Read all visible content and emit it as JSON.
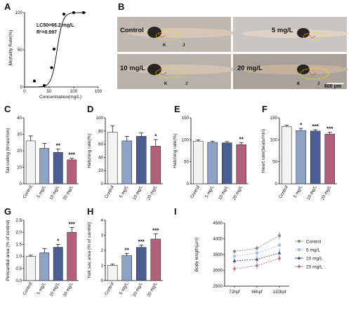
{
  "panels": [
    {
      "id": "A",
      "label": "A"
    },
    {
      "id": "B",
      "label": "B"
    },
    {
      "id": "C",
      "label": "C"
    },
    {
      "id": "D",
      "label": "D"
    },
    {
      "id": "E",
      "label": "E"
    },
    {
      "id": "F",
      "label": "F"
    },
    {
      "id": "G",
      "label": "G"
    },
    {
      "id": "H",
      "label": "H"
    },
    {
      "id": "I",
      "label": "I"
    }
  ],
  "colors": {
    "control": "#f3f3f3",
    "c5": "#8fa3c9",
    "c10": "#4b5d93",
    "c20": "#b3607a",
    "l_control": "#8a8a8a",
    "l_5": "#a8c0e0",
    "l_10": "#3b4a6d",
    "l_20": "#b07080"
  },
  "panelA": {
    "annotation_lc50": "LC50=66.2 mg/L",
    "annotation_r2": "R²=0.997",
    "chart_data": {
      "type": "scatter",
      "xlabel": "Concentration(mg/L)",
      "ylabel": "Mortality Rate(%)",
      "xlim": [
        0,
        150
      ],
      "ylim": [
        0,
        100
      ],
      "xticks": [
        0,
        50,
        100,
        150
      ],
      "yticks": [
        0,
        50,
        100
      ],
      "x": [
        20,
        40,
        55,
        60,
        80,
        100,
        120
      ],
      "values": [
        8,
        2,
        26,
        51,
        98,
        100,
        100
      ]
    }
  },
  "panelB": {
    "labels": {
      "control": "Control",
      "c5": "5 mg/L",
      "c10": "10 mg/L",
      "c20": "20 mg/L"
    },
    "marker_k": "K",
    "marker_j": "J",
    "scalebar": "600 μm"
  },
  "bar_charts": [
    {
      "id": "C",
      "type": "bar",
      "ylabel": "Tail coiling (times/min)",
      "ylim": [
        0,
        40
      ],
      "yticks": [
        0,
        10,
        20,
        30,
        40
      ],
      "categories": [
        "Control",
        "5 mg/L",
        "10 mg/L",
        "20 mg/L"
      ],
      "values": [
        26,
        21.5,
        19,
        14.5
      ],
      "errors": [
        3,
        3,
        2,
        1
      ],
      "sig": [
        "",
        "",
        "**",
        "***"
      ]
    },
    {
      "id": "D",
      "type": "bar",
      "ylabel": "Hatching rate(%)",
      "ylim": [
        0,
        100
      ],
      "yticks": [
        0,
        20,
        40,
        60,
        80,
        100
      ],
      "categories": [
        "Control",
        "5 mg/L",
        "10 mg/L",
        "20 mg/L"
      ],
      "values": [
        78,
        65,
        72,
        57
      ],
      "errors": [
        10,
        7,
        5,
        10
      ],
      "sig": [
        "",
        "",
        "",
        "*"
      ]
    },
    {
      "id": "E",
      "type": "bar",
      "ylabel": "Hatching rate(%)",
      "ylim": [
        0,
        150
      ],
      "yticks": [
        0,
        50,
        100,
        150
      ],
      "categories": [
        "Control",
        "5 mg/L",
        "10 mg/L",
        "20 mg/L"
      ],
      "values": [
        97,
        94,
        93,
        89
      ],
      "errors": [
        3,
        3,
        3,
        4
      ],
      "sig": [
        "",
        "",
        "",
        "**"
      ]
    },
    {
      "id": "F",
      "type": "bar",
      "ylabel": "Heart rate(beats/min)",
      "ylim": [
        0,
        150
      ],
      "yticks": [
        0,
        50,
        100,
        150
      ],
      "categories": [
        "Control",
        "5 mg/L",
        "10 mg/L",
        "20 mg/L"
      ],
      "values": [
        130,
        121,
        120,
        113
      ],
      "errors": [
        3,
        5,
        3,
        4
      ],
      "sig": [
        "",
        "*",
        "***",
        "***"
      ]
    },
    {
      "id": "G",
      "type": "bar",
      "ylabel": "Pericardial area (% of control)",
      "ylim": [
        0,
        2.5
      ],
      "yticks": [
        0.0,
        0.5,
        1.0,
        1.5,
        2.0,
        2.5
      ],
      "categories": [
        "Control",
        "5 mg/L",
        "10 mg/L",
        "20 mg/L"
      ],
      "values": [
        1.0,
        1.15,
        1.38,
        2.0
      ],
      "errors": [
        0.05,
        0.18,
        0.12,
        0.2
      ],
      "sig": [
        "",
        "",
        "*",
        "***"
      ]
    },
    {
      "id": "H",
      "type": "bar",
      "ylabel": "Yolk sac area (% of control)",
      "ylim": [
        0,
        4
      ],
      "yticks": [
        0,
        1,
        2,
        3,
        4
      ],
      "categories": [
        "Control",
        "5 mg/L",
        "10 mg/L",
        "20 mg/L"
      ],
      "values": [
        1.0,
        1.65,
        2.2,
        2.75
      ],
      "errors": [
        0.1,
        0.15,
        0.15,
        0.35
      ],
      "sig": [
        "",
        "**",
        "***",
        "***"
      ]
    }
  ],
  "panelI": {
    "chart_data": {
      "type": "line",
      "ylabel": "Body length(μm)",
      "ylim": [
        2500,
        4500
      ],
      "yticks": [
        2500,
        3000,
        3500,
        4000,
        4500
      ],
      "categories": [
        "72hpf",
        "96hpf",
        "120hpf"
      ],
      "series": [
        {
          "name": "Control",
          "values": [
            3600,
            3700,
            4100
          ],
          "errors": [
            60,
            80,
            130
          ]
        },
        {
          "name": "5 mg/L",
          "values": [
            3450,
            3550,
            3800
          ],
          "errors": [
            60,
            90,
            110
          ]
        },
        {
          "name": "10 mg/L",
          "values": [
            3300,
            3350,
            3550
          ],
          "errors": [
            80,
            120,
            130
          ]
        },
        {
          "name": "20 mg/L",
          "values": [
            3050,
            3150,
            3380
          ],
          "errors": [
            100,
            120,
            100
          ]
        }
      ],
      "legend": "right"
    }
  }
}
